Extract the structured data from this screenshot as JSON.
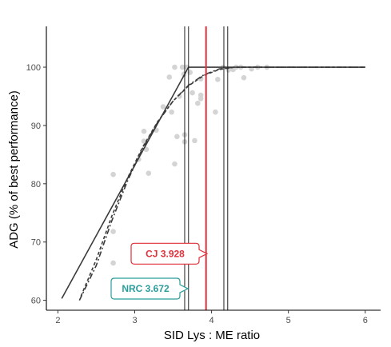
{
  "chart_data": {
    "type": "scatter",
    "title": "",
    "xlabel": "SID Lys : ME ratio",
    "ylabel": "ADG (% of best performance)",
    "xlim": [
      1.85,
      6.2
    ],
    "ylim": [
      58.3,
      107
    ],
    "x_ticks": [
      2,
      3,
      4,
      5,
      6
    ],
    "y_ticks": [
      60,
      70,
      80,
      90,
      100
    ],
    "grid": false,
    "colors": {
      "points": "#d4d4d4",
      "lines": "#3a3a3a",
      "cj": "#e0303a",
      "nrc": "#2a9d9b"
    },
    "points": [
      {
        "x": 2.72,
        "y": 81.6
      },
      {
        "x": 2.72,
        "y": 71.8
      },
      {
        "x": 2.72,
        "y": 66.4
      },
      {
        "x": 3.05,
        "y": 84.2
      },
      {
        "x": 3.12,
        "y": 87.3
      },
      {
        "x": 3.12,
        "y": 89.0
      },
      {
        "x": 3.15,
        "y": 85.9
      },
      {
        "x": 3.18,
        "y": 81.8
      },
      {
        "x": 3.28,
        "y": 89.2
      },
      {
        "x": 3.37,
        "y": 93.2
      },
      {
        "x": 3.45,
        "y": 98.3
      },
      {
        "x": 3.48,
        "y": 92.3
      },
      {
        "x": 3.52,
        "y": 100.0
      },
      {
        "x": 3.52,
        "y": 83.4
      },
      {
        "x": 3.55,
        "y": 88.1
      },
      {
        "x": 3.58,
        "y": 95.0
      },
      {
        "x": 3.62,
        "y": 100.0
      },
      {
        "x": 3.64,
        "y": 98.8
      },
      {
        "x": 3.65,
        "y": 88.4
      },
      {
        "x": 3.65,
        "y": 87.2
      },
      {
        "x": 3.68,
        "y": 100.0
      },
      {
        "x": 3.72,
        "y": 99.1
      },
      {
        "x": 3.75,
        "y": 95.6
      },
      {
        "x": 3.78,
        "y": 87.4
      },
      {
        "x": 3.82,
        "y": 93.8
      },
      {
        "x": 3.86,
        "y": 95.2
      },
      {
        "x": 3.86,
        "y": 94.6
      },
      {
        "x": 3.86,
        "y": 98.0
      },
      {
        "x": 4.05,
        "y": 92.3
      },
      {
        "x": 4.08,
        "y": 97.9
      },
      {
        "x": 4.15,
        "y": 100.0
      },
      {
        "x": 4.22,
        "y": 99.5
      },
      {
        "x": 4.28,
        "y": 99.6
      },
      {
        "x": 4.32,
        "y": 100.0
      },
      {
        "x": 4.38,
        "y": 100.0
      },
      {
        "x": 4.42,
        "y": 98.2
      },
      {
        "x": 4.52,
        "y": 99.7
      },
      {
        "x": 4.6,
        "y": 100.0
      },
      {
        "x": 4.72,
        "y": 100.0
      }
    ],
    "broken_line": {
      "x": [
        2.05,
        3.7,
        6.0
      ],
      "y": [
        60.3,
        100.0,
        100.0
      ]
    },
    "quadratic_curve": {
      "x": [
        2.3,
        2.5,
        2.7,
        2.9,
        3.1,
        3.3,
        3.5,
        3.7,
        3.9,
        4.1,
        4.3,
        4.6,
        5.0,
        6.0
      ],
      "y": [
        60.7,
        67.0,
        74.4,
        80.8,
        86.2,
        90.7,
        94.2,
        96.8,
        98.6,
        99.6,
        100.0,
        100.0,
        100.0,
        100.0
      ]
    },
    "dashdot_curve": {
      "x": [
        2.28,
        2.5,
        2.7,
        2.9,
        3.1,
        3.3,
        3.5,
        3.7,
        3.9,
        4.1,
        4.3,
        4.5,
        5.0,
        6.0
      ],
      "y": [
        60.0,
        66.0,
        73.6,
        80.3,
        86.0,
        90.6,
        94.2,
        96.9,
        98.7,
        99.7,
        100.0,
        100.0,
        100.0,
        100.0
      ]
    },
    "vlines_nrc": [
      3.65,
      3.7
    ],
    "vlines_right": [
      4.16,
      4.21
    ],
    "vline_cj": 3.928,
    "annotations": [
      {
        "id": "cj",
        "text": "CJ  3.928",
        "color": "#e0303a",
        "y": 68.0
      },
      {
        "id": "nrc",
        "text": "NRC 3.672",
        "color": "#2a9d9b",
        "y": 62.0
      }
    ]
  }
}
